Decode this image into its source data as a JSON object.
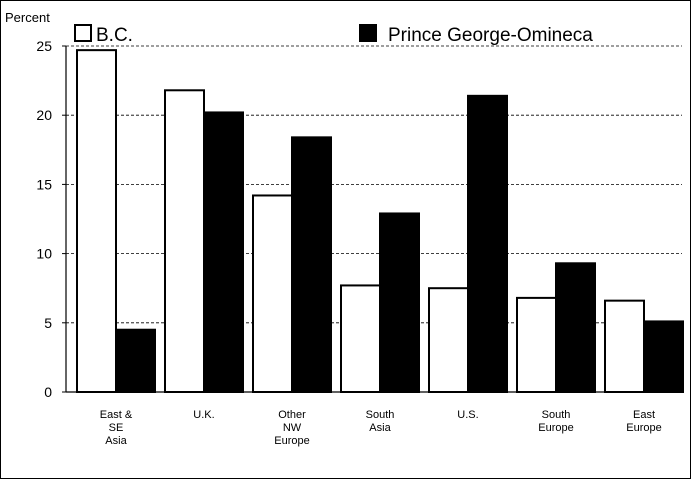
{
  "chart_data": {
    "type": "bar",
    "ylabel": "Percent",
    "ylim": [
      0,
      25
    ],
    "yticks": [
      0,
      5,
      10,
      15,
      20,
      25
    ],
    "grid": true,
    "legend": "top",
    "categories": [
      [
        "East &",
        "SE",
        "Asia"
      ],
      [
        "U.K."
      ],
      [
        "Other",
        "NW",
        "Europe"
      ],
      [
        "South",
        "Asia"
      ],
      [
        "U.S."
      ],
      [
        "South",
        "Europe"
      ],
      [
        "East",
        "Europe"
      ]
    ],
    "series": [
      {
        "name": "B.C.",
        "color": "#ffffff",
        "values": [
          24.7,
          21.8,
          14.2,
          7.7,
          7.5,
          6.8,
          6.6
        ]
      },
      {
        "name": "Prince George-Omineca",
        "color": "#000000",
        "values": [
          4.5,
          20.2,
          18.4,
          12.9,
          21.4,
          9.3,
          5.1
        ]
      }
    ]
  }
}
